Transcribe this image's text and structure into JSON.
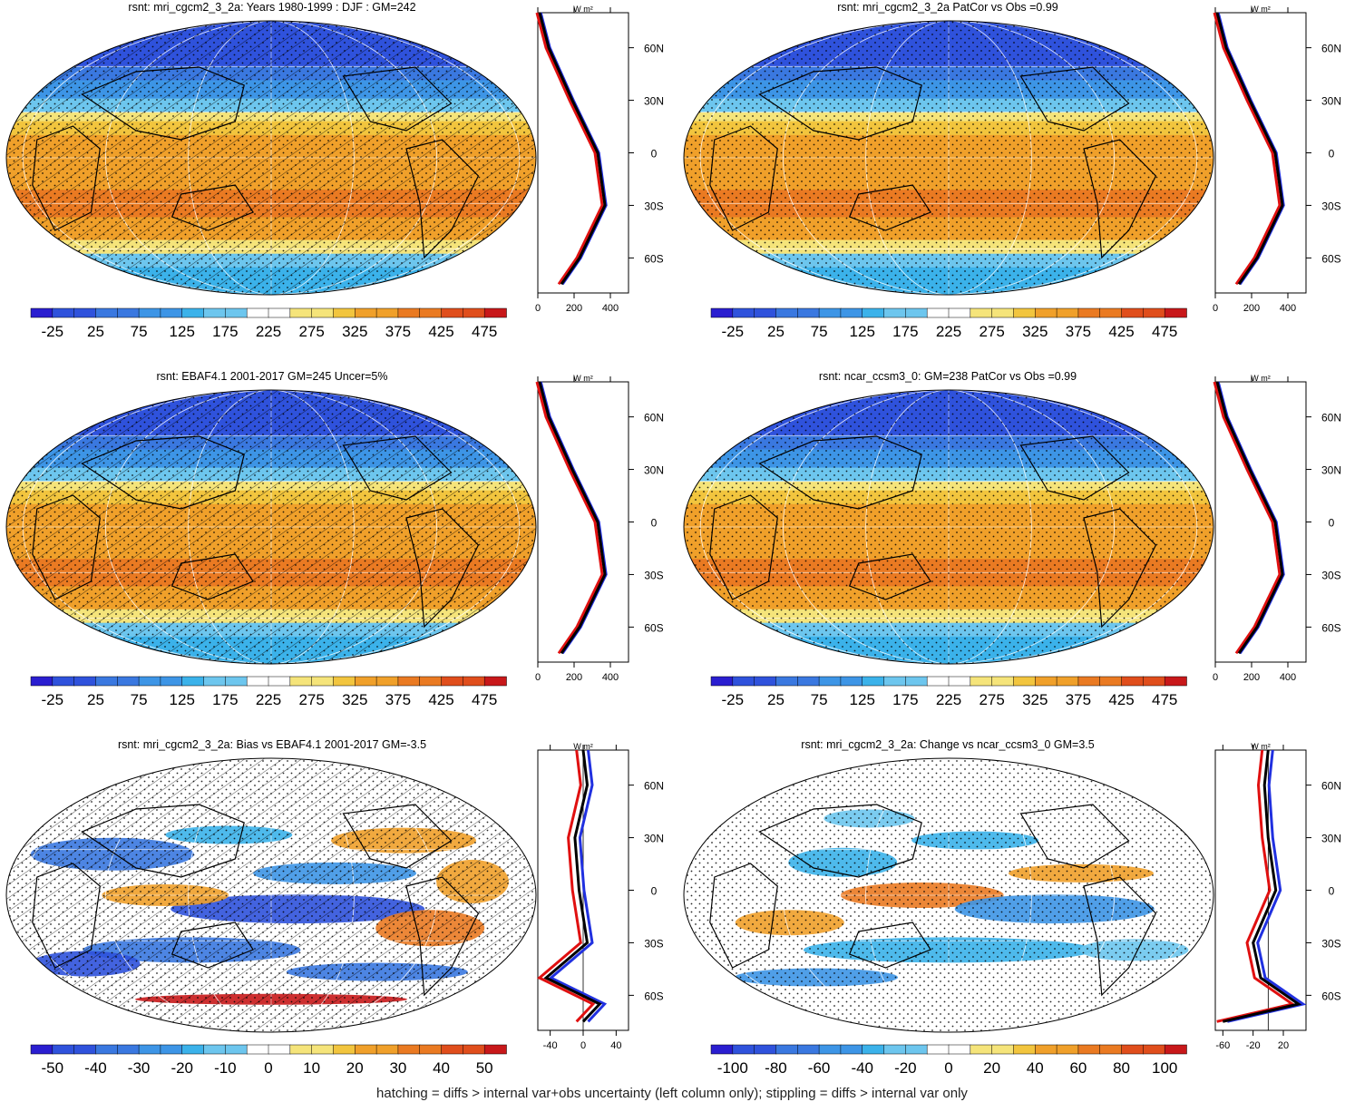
{
  "panels": [
    {
      "title": "rsnt: mri_cgcm2_3_2a: Years 1980-1999 : DJF : GM=242",
      "kind": "mean",
      "hatching": true,
      "stippling": true,
      "colorbar": {
        "labels": [
          "-25",
          "25",
          "75",
          "125",
          "175",
          "225",
          "275",
          "325",
          "375",
          "425",
          "475"
        ]
      },
      "profile": {
        "ticks": [
          "0",
          "200",
          "400"
        ],
        "xlim": [
          0,
          500
        ]
      }
    },
    {
      "title": "rsnt: mri_cgcm2_3_2a PatCor vs Obs =0.99",
      "kind": "mean",
      "hatching": false,
      "stippling": true,
      "colorbar": {
        "labels": [
          "-25",
          "25",
          "75",
          "125",
          "175",
          "225",
          "275",
          "325",
          "375",
          "425",
          "475"
        ]
      },
      "profile": {
        "ticks": [
          "0",
          "200",
          "400"
        ],
        "xlim": [
          0,
          500
        ]
      }
    },
    {
      "title": "rsnt: EBAF4.1 2001-2017 GM=245 Uncer=5%",
      "kind": "mean",
      "hatching": true,
      "stippling": true,
      "colorbar": {
        "labels": [
          "-25",
          "25",
          "75",
          "125",
          "175",
          "225",
          "275",
          "325",
          "375",
          "425",
          "475"
        ]
      },
      "profile": {
        "ticks": [
          "0",
          "200",
          "400"
        ],
        "xlim": [
          0,
          500
        ]
      }
    },
    {
      "title": "rsnt: ncar_ccsm3_0: GM=238 PatCor vs Obs =0.99",
      "kind": "mean",
      "hatching": false,
      "stippling": true,
      "colorbar": {
        "labels": [
          "-25",
          "25",
          "75",
          "125",
          "175",
          "225",
          "275",
          "325",
          "375",
          "425",
          "475"
        ]
      },
      "profile": {
        "ticks": [
          "0",
          "200",
          "400"
        ],
        "xlim": [
          0,
          500
        ]
      }
    },
    {
      "title": "rsnt: mri_cgcm2_3_2a: Bias vs EBAF4.1 2001-2017 GM=-3.5",
      "kind": "bias",
      "hatching": true,
      "stippling": true,
      "colorbar": {
        "labels": [
          "-50",
          "-40",
          "-30",
          "-20",
          "-10",
          "0",
          "10",
          "20",
          "30",
          "40",
          "50"
        ]
      },
      "profile": {
        "ticks": [
          "-40",
          "0",
          "40"
        ],
        "xlim": [
          -55,
          55
        ]
      }
    },
    {
      "title": "rsnt: mri_cgcm2_3_2a: Change vs ncar_ccsm3_0 GM=3.5",
      "kind": "change",
      "hatching": false,
      "stippling": true,
      "colorbar": {
        "labels": [
          "-100",
          "-80",
          "-60",
          "-40",
          "-20",
          "0",
          "20",
          "40",
          "60",
          "80",
          "100"
        ]
      },
      "profile": {
        "ticks": [
          "-60",
          "-20",
          "20"
        ],
        "xlim": [
          -70,
          50
        ]
      }
    }
  ],
  "profile_units": "W m²",
  "lat_labels": [
    "60N",
    "30N",
    "0",
    "30S",
    "60S"
  ],
  "footnote": "hatching = diffs > internal var+obs uncertainty (left column only); stippling = diffs > internal var only",
  "palette": [
    "#2a1ed0",
    "#2f52dc",
    "#3a78e0",
    "#3d95e6",
    "#3bb2ea",
    "#6dc6ee",
    "#ffffff",
    "#f5e47a",
    "#f2c53e",
    "#f0a02a",
    "#ea7a22",
    "#e04e1c",
    "#c8181a"
  ],
  "chart_data": [
    {
      "type": "heatmap",
      "title": "rsnt: mri_cgcm2_3_2a: Years 1980-1999 : DJF : GM=242",
      "colorbar_range": [
        -50,
        500
      ],
      "zonal_profile": {
        "lat": [
          80,
          60,
          30,
          0,
          -30,
          -60,
          -75
        ],
        "series": [
          {
            "values": [
              10,
              60,
              190,
              330,
              370,
              230,
              130
            ]
          }
        ]
      }
    },
    {
      "type": "heatmap",
      "title": "rsnt: mri_cgcm2_3_2a PatCor vs Obs =0.99",
      "colorbar_range": [
        -50,
        500
      ],
      "zonal_profile": {
        "lat": [
          80,
          60,
          30,
          0,
          -30,
          -60,
          -75
        ],
        "series": [
          {
            "values": [
              10,
              60,
              190,
              330,
              370,
              230,
              130
            ]
          }
        ]
      }
    },
    {
      "type": "heatmap",
      "title": "rsnt: EBAF4.1 2001-2017 GM=245 Uncer=5%",
      "colorbar_range": [
        -50,
        500
      ],
      "zonal_profile": {
        "lat": [
          80,
          60,
          30,
          0,
          -30,
          -60,
          -75
        ],
        "series": [
          {
            "values": [
              10,
              60,
              190,
              330,
              370,
              230,
              130
            ]
          }
        ]
      }
    },
    {
      "type": "heatmap",
      "title": "rsnt: ncar_ccsm3_0: GM=238 PatCor vs Obs =0.99",
      "colorbar_range": [
        -50,
        500
      ],
      "zonal_profile": {
        "lat": [
          80,
          60,
          30,
          0,
          -30,
          -60,
          -75
        ],
        "series": [
          {
            "values": [
              10,
              60,
              190,
              330,
              370,
              230,
              130
            ]
          }
        ]
      }
    },
    {
      "type": "heatmap",
      "title": "rsnt: mri_cgcm2_3_2a: Bias vs EBAF4.1 2001-2017 GM=-3.5",
      "colorbar_range": [
        -55,
        55
      ],
      "zonal_profile": {
        "lat": [
          80,
          60,
          30,
          0,
          -30,
          -50,
          -65,
          -75
        ],
        "series": [
          {
            "values": [
              0,
              5,
              -10,
              -5,
              5,
              -45,
              20,
              0
            ]
          }
        ]
      }
    },
    {
      "type": "heatmap",
      "title": "rsnt: mri_cgcm2_3_2a: Change vs ncar_ccsm3_0 GM=3.5",
      "colorbar_range": [
        -110,
        110
      ],
      "zonal_profile": {
        "lat": [
          80,
          60,
          30,
          0,
          -30,
          -50,
          -65,
          -75
        ],
        "series": [
          {
            "values": [
              0,
              -5,
              0,
              10,
              -20,
              -10,
              40,
              -60
            ]
          }
        ]
      }
    }
  ]
}
